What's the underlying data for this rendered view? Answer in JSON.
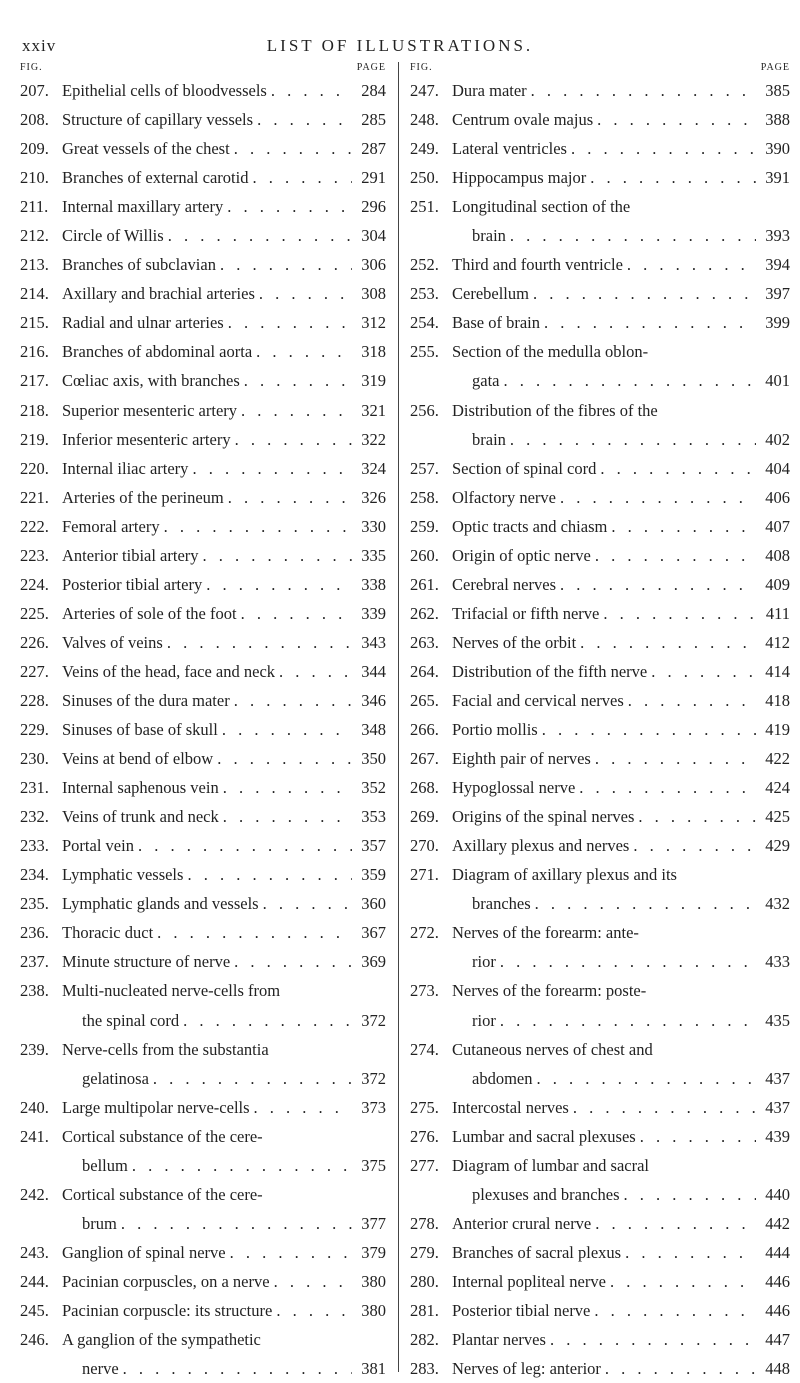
{
  "header": {
    "page_number": "xxiv",
    "title": "LIST OF ILLUSTRATIONS."
  },
  "column_heads": {
    "fig": "FIG.",
    "page": "PAGE"
  },
  "left": [
    {
      "num": "207.",
      "lines": [
        "Epithelial cells of bloodvessels"
      ],
      "page": "284"
    },
    {
      "num": "208.",
      "lines": [
        "Structure of capillary vessels"
      ],
      "page": "285"
    },
    {
      "num": "209.",
      "lines": [
        "Great vessels of the chest"
      ],
      "page": "287"
    },
    {
      "num": "210.",
      "lines": [
        "Branches of external carotid"
      ],
      "page": "291"
    },
    {
      "num": "211.",
      "lines": [
        "Internal maxillary artery"
      ],
      "page": "296"
    },
    {
      "num": "212.",
      "lines": [
        "Circle of Willis"
      ],
      "page": "304"
    },
    {
      "num": "213.",
      "lines": [
        "Branches of subclavian"
      ],
      "page": "306"
    },
    {
      "num": "214.",
      "lines": [
        "Axillary and brachial arteries"
      ],
      "page": "308"
    },
    {
      "num": "215.",
      "lines": [
        "Radial and ulnar arteries"
      ],
      "page": "312"
    },
    {
      "num": "216.",
      "lines": [
        "Branches of abdominal aorta"
      ],
      "page": "318"
    },
    {
      "num": "217.",
      "lines": [
        "Cœliac axis, with branches"
      ],
      "page": "319"
    },
    {
      "num": "218.",
      "lines": [
        "Superior mesenteric artery"
      ],
      "page": "321"
    },
    {
      "num": "219.",
      "lines": [
        "Inferior mesenteric artery"
      ],
      "page": "322"
    },
    {
      "num": "220.",
      "lines": [
        "Internal iliac artery"
      ],
      "page": "324"
    },
    {
      "num": "221.",
      "lines": [
        "Arteries of the perineum"
      ],
      "page": "326"
    },
    {
      "num": "222.",
      "lines": [
        "Femoral artery"
      ],
      "page": "330"
    },
    {
      "num": "223.",
      "lines": [
        "Anterior tibial artery"
      ],
      "page": "335"
    },
    {
      "num": "224.",
      "lines": [
        "Posterior tibial artery"
      ],
      "page": "338"
    },
    {
      "num": "225.",
      "lines": [
        "Arteries of sole of the foot"
      ],
      "page": "339"
    },
    {
      "num": "226.",
      "lines": [
        "Valves of veins"
      ],
      "page": "343"
    },
    {
      "num": "227.",
      "lines": [
        "Veins of the head, face and neck"
      ],
      "page": "344"
    },
    {
      "num": "228.",
      "lines": [
        "Sinuses of the dura mater"
      ],
      "page": "346"
    },
    {
      "num": "229.",
      "lines": [
        "Sinuses of base of skull"
      ],
      "page": "348"
    },
    {
      "num": "230.",
      "lines": [
        "Veins at bend of elbow"
      ],
      "page": "350"
    },
    {
      "num": "231.",
      "lines": [
        "Internal saphenous vein"
      ],
      "page": "352"
    },
    {
      "num": "232.",
      "lines": [
        "Veins of trunk and neck"
      ],
      "page": "353"
    },
    {
      "num": "233.",
      "lines": [
        "Portal vein"
      ],
      "page": "357"
    },
    {
      "num": "234.",
      "lines": [
        "Lymphatic vessels"
      ],
      "page": "359"
    },
    {
      "num": "235.",
      "lines": [
        "Lymphatic glands and vessels"
      ],
      "page": "360"
    },
    {
      "num": "236.",
      "lines": [
        "Thoracic duct"
      ],
      "page": "367"
    },
    {
      "num": "237.",
      "lines": [
        "Minute structure of nerve"
      ],
      "page": "369"
    },
    {
      "num": "238.",
      "lines": [
        "Multi-nucleated nerve-cells from",
        "the spinal cord"
      ],
      "page": "372"
    },
    {
      "num": "239.",
      "lines": [
        "Nerve-cells from the substantia",
        "gelatinosa"
      ],
      "page": "372"
    },
    {
      "num": "240.",
      "lines": [
        "Large multipolar nerve-cells"
      ],
      "page": "373"
    },
    {
      "num": "241.",
      "lines": [
        "Cortical substance of the cere-",
        "bellum"
      ],
      "page": "375"
    },
    {
      "num": "242.",
      "lines": [
        "Cortical substance of the cere-",
        "brum"
      ],
      "page": "377"
    },
    {
      "num": "243.",
      "lines": [
        "Ganglion of spinal nerve"
      ],
      "page": "379"
    },
    {
      "num": "244.",
      "lines": [
        "Pacinian corpuscles, on a nerve"
      ],
      "page": "380"
    },
    {
      "num": "245.",
      "lines": [
        "Pacinian corpuscle: its structure"
      ],
      "page": "380"
    },
    {
      "num": "246.",
      "lines": [
        "A ganglion of the sympathetic",
        "nerve"
      ],
      "page": "381"
    }
  ],
  "right": [
    {
      "num": "247.",
      "lines": [
        "Dura mater"
      ],
      "page": "385"
    },
    {
      "num": "248.",
      "lines": [
        "Centrum ovale majus"
      ],
      "page": "388"
    },
    {
      "num": "249.",
      "lines": [
        "Lateral ventricles"
      ],
      "page": "390"
    },
    {
      "num": "250.",
      "lines": [
        "Hippocampus major"
      ],
      "page": "391"
    },
    {
      "num": "251.",
      "lines": [
        "Longitudinal section of the",
        "brain"
      ],
      "page": "393"
    },
    {
      "num": "252.",
      "lines": [
        "Third and fourth ventricle"
      ],
      "page": "394"
    },
    {
      "num": "253.",
      "lines": [
        "Cerebellum"
      ],
      "page": "397"
    },
    {
      "num": "254.",
      "lines": [
        "Base of brain"
      ],
      "page": "399"
    },
    {
      "num": "255.",
      "lines": [
        "Section of the medulla oblon-",
        "gata"
      ],
      "page": "401"
    },
    {
      "num": "256.",
      "lines": [
        "Distribution of the fibres of the",
        "brain"
      ],
      "page": "402"
    },
    {
      "num": "257.",
      "lines": [
        "Section of spinal cord"
      ],
      "page": "404"
    },
    {
      "num": "258.",
      "lines": [
        "Olfactory nerve"
      ],
      "page": "406"
    },
    {
      "num": "259.",
      "lines": [
        "Optic tracts and chiasm"
      ],
      "page": "407"
    },
    {
      "num": "260.",
      "lines": [
        "Origin of optic nerve"
      ],
      "page": "408"
    },
    {
      "num": "261.",
      "lines": [
        "Cerebral nerves"
      ],
      "page": "409"
    },
    {
      "num": "262.",
      "lines": [
        "Trifacial or fifth nerve"
      ],
      "page": "411"
    },
    {
      "num": "263.",
      "lines": [
        "Nerves of the orbit"
      ],
      "page": "412"
    },
    {
      "num": "264.",
      "lines": [
        "Distribution of the fifth nerve"
      ],
      "page": "414"
    },
    {
      "num": "265.",
      "lines": [
        "Facial and cervical nerves"
      ],
      "page": "418"
    },
    {
      "num": "266.",
      "lines": [
        "Portio mollis"
      ],
      "page": "419"
    },
    {
      "num": "267.",
      "lines": [
        "Eighth pair of nerves"
      ],
      "page": "422"
    },
    {
      "num": "268.",
      "lines": [
        "Hypoglossal nerve"
      ],
      "page": "424"
    },
    {
      "num": "269.",
      "lines": [
        "Origins of the spinal nerves"
      ],
      "page": "425"
    },
    {
      "num": "270.",
      "lines": [
        "Axillary plexus and nerves"
      ],
      "page": "429"
    },
    {
      "num": "271.",
      "lines": [
        "Diagram of axillary plexus and its",
        "branches"
      ],
      "page": "432"
    },
    {
      "num": "272.",
      "lines": [
        "Nerves of the forearm: ante-",
        "rior"
      ],
      "page": "433"
    },
    {
      "num": "273.",
      "lines": [
        "Nerves of the forearm: poste-",
        "rior"
      ],
      "page": "435"
    },
    {
      "num": "274.",
      "lines": [
        "Cutaneous nerves of chest and",
        "abdomen"
      ],
      "page": "437"
    },
    {
      "num": "275.",
      "lines": [
        "Intercostal nerves"
      ],
      "page": "437"
    },
    {
      "num": "276.",
      "lines": [
        "Lumbar and sacral plexuses"
      ],
      "page": "439"
    },
    {
      "num": "277.",
      "lines": [
        "Diagram of lumbar and sacral",
        "plexuses and branches"
      ],
      "page": "440"
    },
    {
      "num": "278.",
      "lines": [
        "Anterior crural nerve"
      ],
      "page": "442"
    },
    {
      "num": "279.",
      "lines": [
        "Branches of sacral plexus"
      ],
      "page": "444"
    },
    {
      "num": "280.",
      "lines": [
        "Internal popliteal nerve"
      ],
      "page": "446"
    },
    {
      "num": "281.",
      "lines": [
        "Posterior tibial nerve"
      ],
      "page": "446"
    },
    {
      "num": "282.",
      "lines": [
        "Plantar nerves"
      ],
      "page": "447"
    },
    {
      "num": "283.",
      "lines": [
        "Nerves of leg: anterior"
      ],
      "page": "448"
    }
  ]
}
